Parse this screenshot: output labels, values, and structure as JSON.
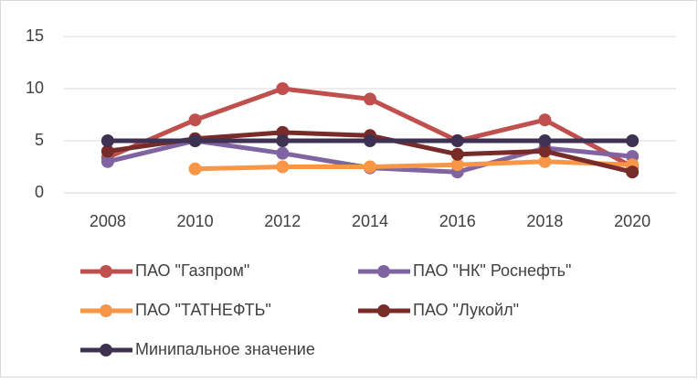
{
  "chart_data": {
    "type": "line",
    "categories": [
      "2008",
      "2010",
      "2012",
      "2014",
      "2016",
      "2018",
      "2020"
    ],
    "series": [
      {
        "name": "ПАО \"Газпром\"",
        "color": "#c0504d",
        "values": [
          3.4,
          7,
          10,
          9,
          5,
          7,
          2.5
        ]
      },
      {
        "name": "ПАО \"НК\" Роснефть\"",
        "color": "#8064a2",
        "values": [
          3,
          5,
          3.8,
          2.4,
          2,
          4.3,
          3.5
        ]
      },
      {
        "name": "ПАО \"ТАТНЕФТЬ\"",
        "color": "#f79646",
        "values": [
          null,
          2.3,
          2.5,
          2.5,
          2.7,
          3,
          2.7
        ]
      },
      {
        "name": "ПАО \"Лукойл\"",
        "color": "#772c2a",
        "values": [
          4,
          5.2,
          5.8,
          5.5,
          3.7,
          4,
          2
        ]
      },
      {
        "name": "Минипальное значение",
        "color": "#3f3151",
        "values": [
          5,
          5,
          5,
          5,
          5,
          5,
          5
        ]
      }
    ],
    "ylim": [
      0,
      15
    ],
    "yticks": [
      0,
      5,
      10,
      15
    ],
    "grid": true
  }
}
